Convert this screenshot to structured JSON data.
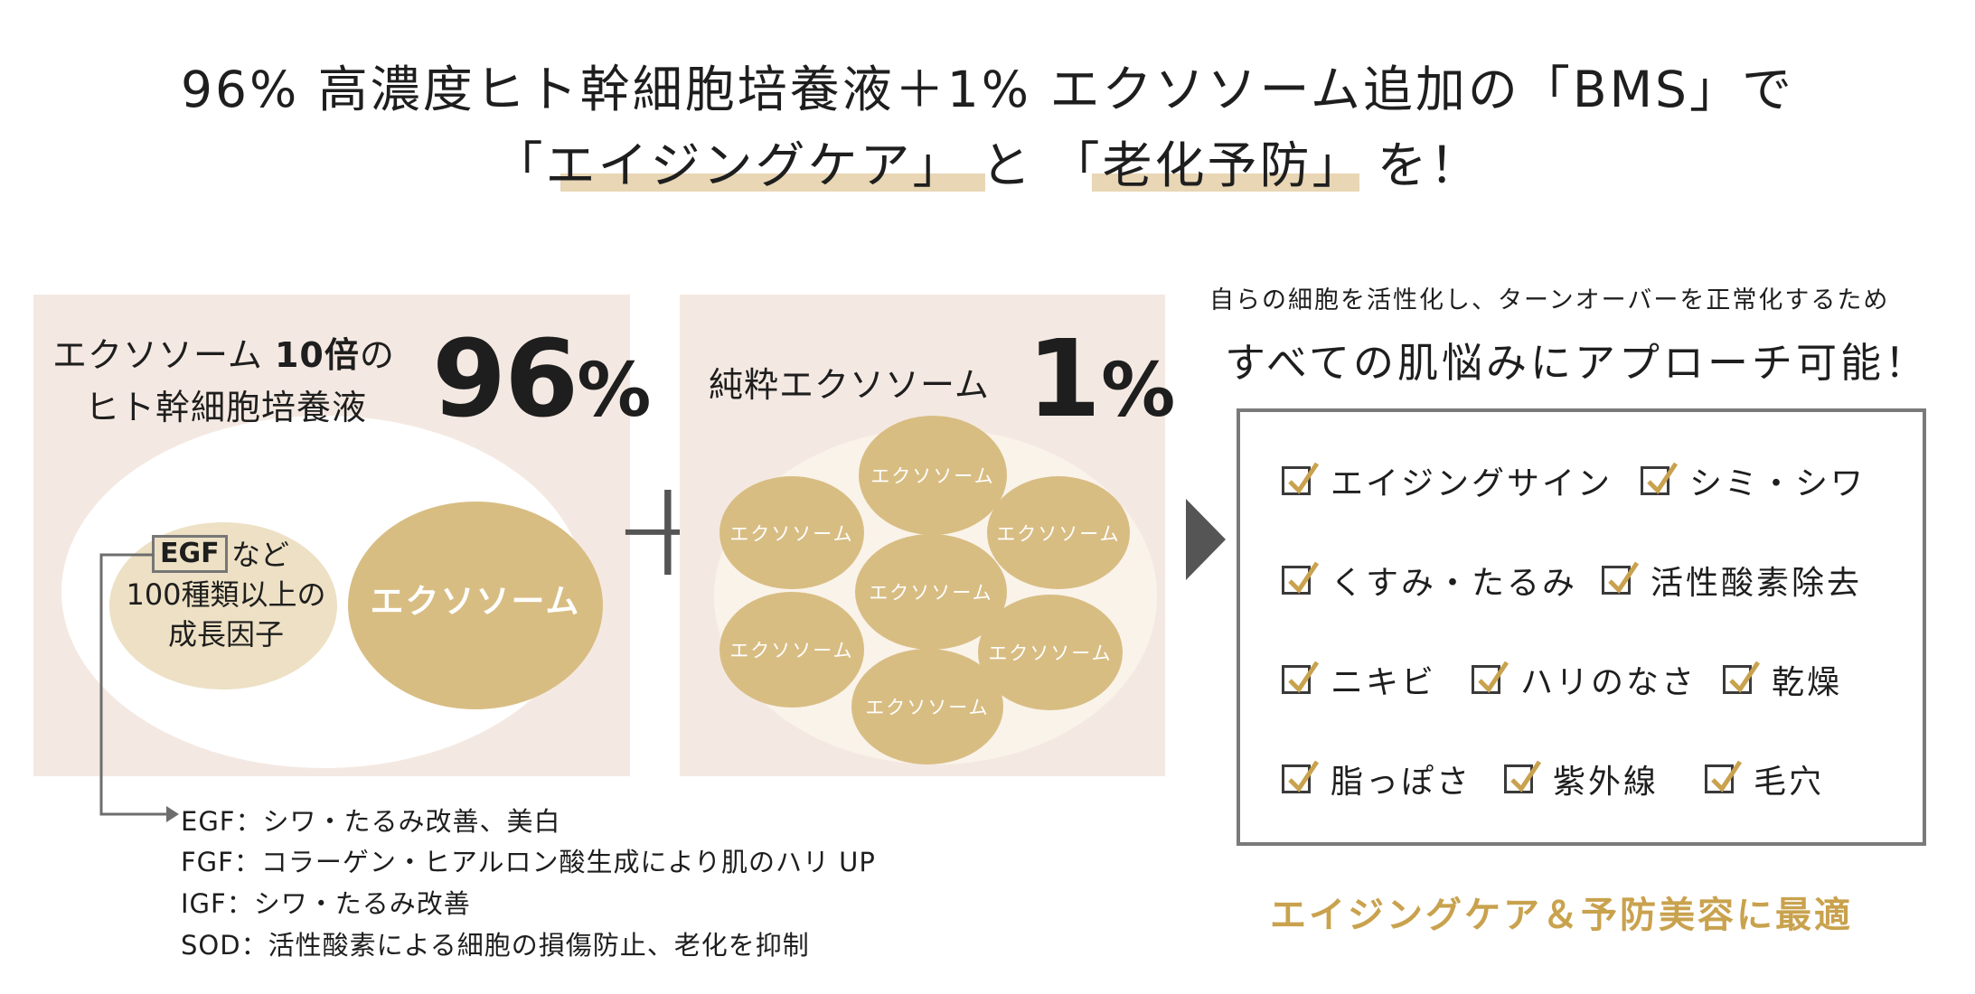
{
  "headline": {
    "line1": "96% 高濃度ヒト幹細胞培養液＋1% エクソソーム追加の「BMS」で",
    "line2_part1": "「エイジングケア」",
    "line2_part2": "と",
    "line2_part3": "「老化予防」",
    "line2_part4": "を！"
  },
  "panel1": {
    "title_a": "エクソソーム",
    "title_b": "10倍",
    "title_c": "の",
    "title_line2": "ヒト幹細胞培養液",
    "big_number": "96",
    "percent": "%",
    "egf": "EGF",
    "egf_suffix": "など",
    "growth_line2": "100種類以上の",
    "growth_line3": "成長因子",
    "exosome_label": "エクソソーム"
  },
  "plus_sign": "+",
  "panel2": {
    "title": "純粋エクソソーム",
    "big_number": "1",
    "percent": "%",
    "circle_label": "エクソソーム"
  },
  "factors": [
    "EGF：シワ・たるみ改善、美白",
    "FGF：コラーゲン・ヒアルロン酸生成により肌のハリ UP",
    "IGF：シワ・たるみ改善",
    "SOD：活性酸素による細胞の損傷防止、老化を抑制"
  ],
  "right": {
    "subtitle": "自らの細胞を活性化し、ターンオーバーを正常化するため",
    "heading": "すべての肌悩みにアプローチ可能！",
    "checks": [
      "エイジングサイン",
      "シミ・シワ",
      "くすみ・たるみ",
      "活性酸素除去",
      "ニキビ",
      "ハリのなさ",
      "乾燥",
      "脂っぽさ",
      "紫外線",
      "毛穴"
    ],
    "footer": "エイジングケア＆予防美容に最適"
  },
  "colors": {
    "panel_bg": "#f4e9e2",
    "gold": "#d8bd83",
    "light_gold": "#ede0c4",
    "accent_text": "#c9a24e",
    "underline": "#e8d6b4"
  }
}
